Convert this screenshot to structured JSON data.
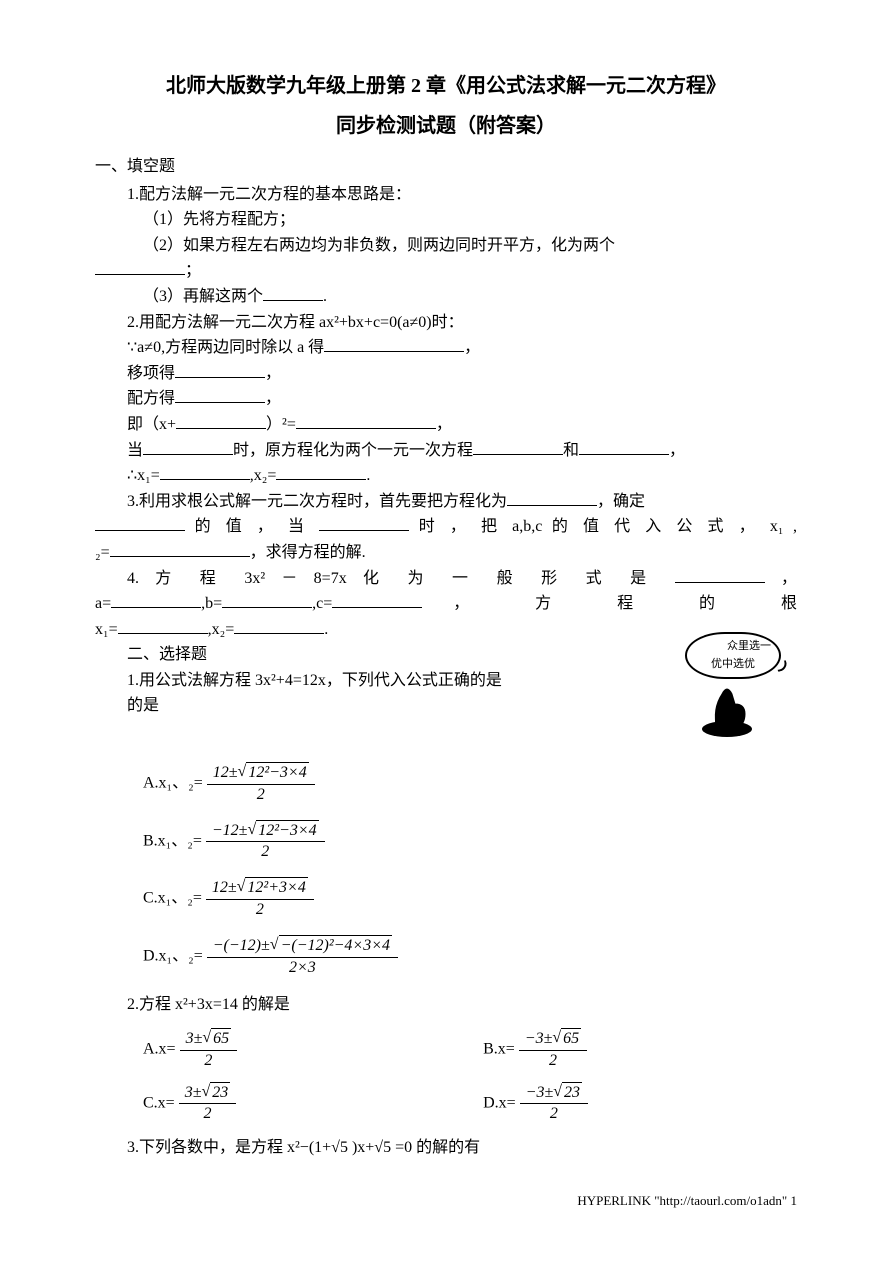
{
  "title": "北师大版数学九年级上册第 2 章《用公式法求解一元二次方程》",
  "subtitle": "同步检测试题（附答案）",
  "section1": {
    "head": "一、填空题",
    "q1_intro": "1.配方法解一元二次方程的基本思路是：",
    "q1_1": "（1）先将方程配方；",
    "q1_2_a": "（2）如果方程左右两边均为非负数，则两边同时开平方，化为两个",
    "q1_2_b": "；",
    "q1_3_a": "（3）再解这两个",
    "q1_3_b": ".",
    "q2_intro": "2.用配方法解一元二次方程 ax²+bx+c=0(a≠0)时：",
    "q2_1_a": "∵a≠0,方程两边同时除以 a 得",
    "q2_1_b": "，",
    "q2_2_a": "移项得",
    "q2_2_b": "，",
    "q2_3_a": "配方得",
    "q2_3_b": "，",
    "q2_4_a": "即（x+",
    "q2_4_b": "）²=",
    "q2_4_c": "，",
    "q2_5_a": "当",
    "q2_5_b": "时，原方程化为两个一元一次方程",
    "q2_5_c": "和",
    "q2_5_d": "，",
    "q2_6_a": "∴x₁=",
    "q2_6_b": ",x₂=",
    "q2_6_c": ".",
    "q3_a": "3.利用求根公式解一元二次方程时，首先要把方程化为",
    "q3_b": "，确定",
    "q3_c": " 的 值 ， 当 ",
    "q3_d": " 时 ， 把 a,b,c 的 值 代 入 公 式 ， x₁ ,",
    "q3_e": "₂=",
    "q3_f": "，求得方程的解.",
    "q4_a": "4. 方 程   3x²  －  8=7x   化 为 一 般 形 式 是  ",
    "q4_b": " ，",
    "q4_c": "a=",
    "q4_d": ",b=",
    "q4_e": ",c=",
    "q4_f": "，     方     程     的     根",
    "q4_g": "x₁=",
    "q4_h": ",x₂=",
    "q4_i": "."
  },
  "section2": {
    "head": "二、选择题",
    "q1_intro": "1.用公式法解方程 3x²+4=12x，下列代入公式正确的是",
    "bubble1": "众里选一",
    "bubble2": "优中选优",
    "optA_label": "A.x₁、₂=",
    "optA_num": "12±√(12²−3×4)",
    "optA_den": "2",
    "optB_label": "B.x₁、₂=",
    "optB_num": "−12±√(12²−3×4)",
    "optB_den": "2",
    "optC_label": "C.x₁、₂=",
    "optC_num": "12±√(12²+3×4)",
    "optC_den": "2",
    "optD_label": "D.x₁、₂=",
    "optD_num": "−(−12)±√(−(−12)²−4×3×4)",
    "optD_den": "2×3",
    "q2_intro": "2.方程 x²+3x=14 的解是",
    "q2A_label": "A.x=",
    "q2A_num": "3±√65",
    "q2A_den": "2",
    "q2B_label": "B.x=",
    "q2B_num": "−3±√65",
    "q2B_den": "2",
    "q2C_label": "C.x=",
    "q2C_num": "3±√23",
    "q2C_den": "2",
    "q2D_label": "D.x=",
    "q2D_num": "−3±√23",
    "q2D_den": "2",
    "q3": "3.下列各数中，是方程 x²−(1+√5 )x+√5 =0 的解的有"
  },
  "footer": "HYPERLINK \"http://taourl.com/o1adn\" 1"
}
